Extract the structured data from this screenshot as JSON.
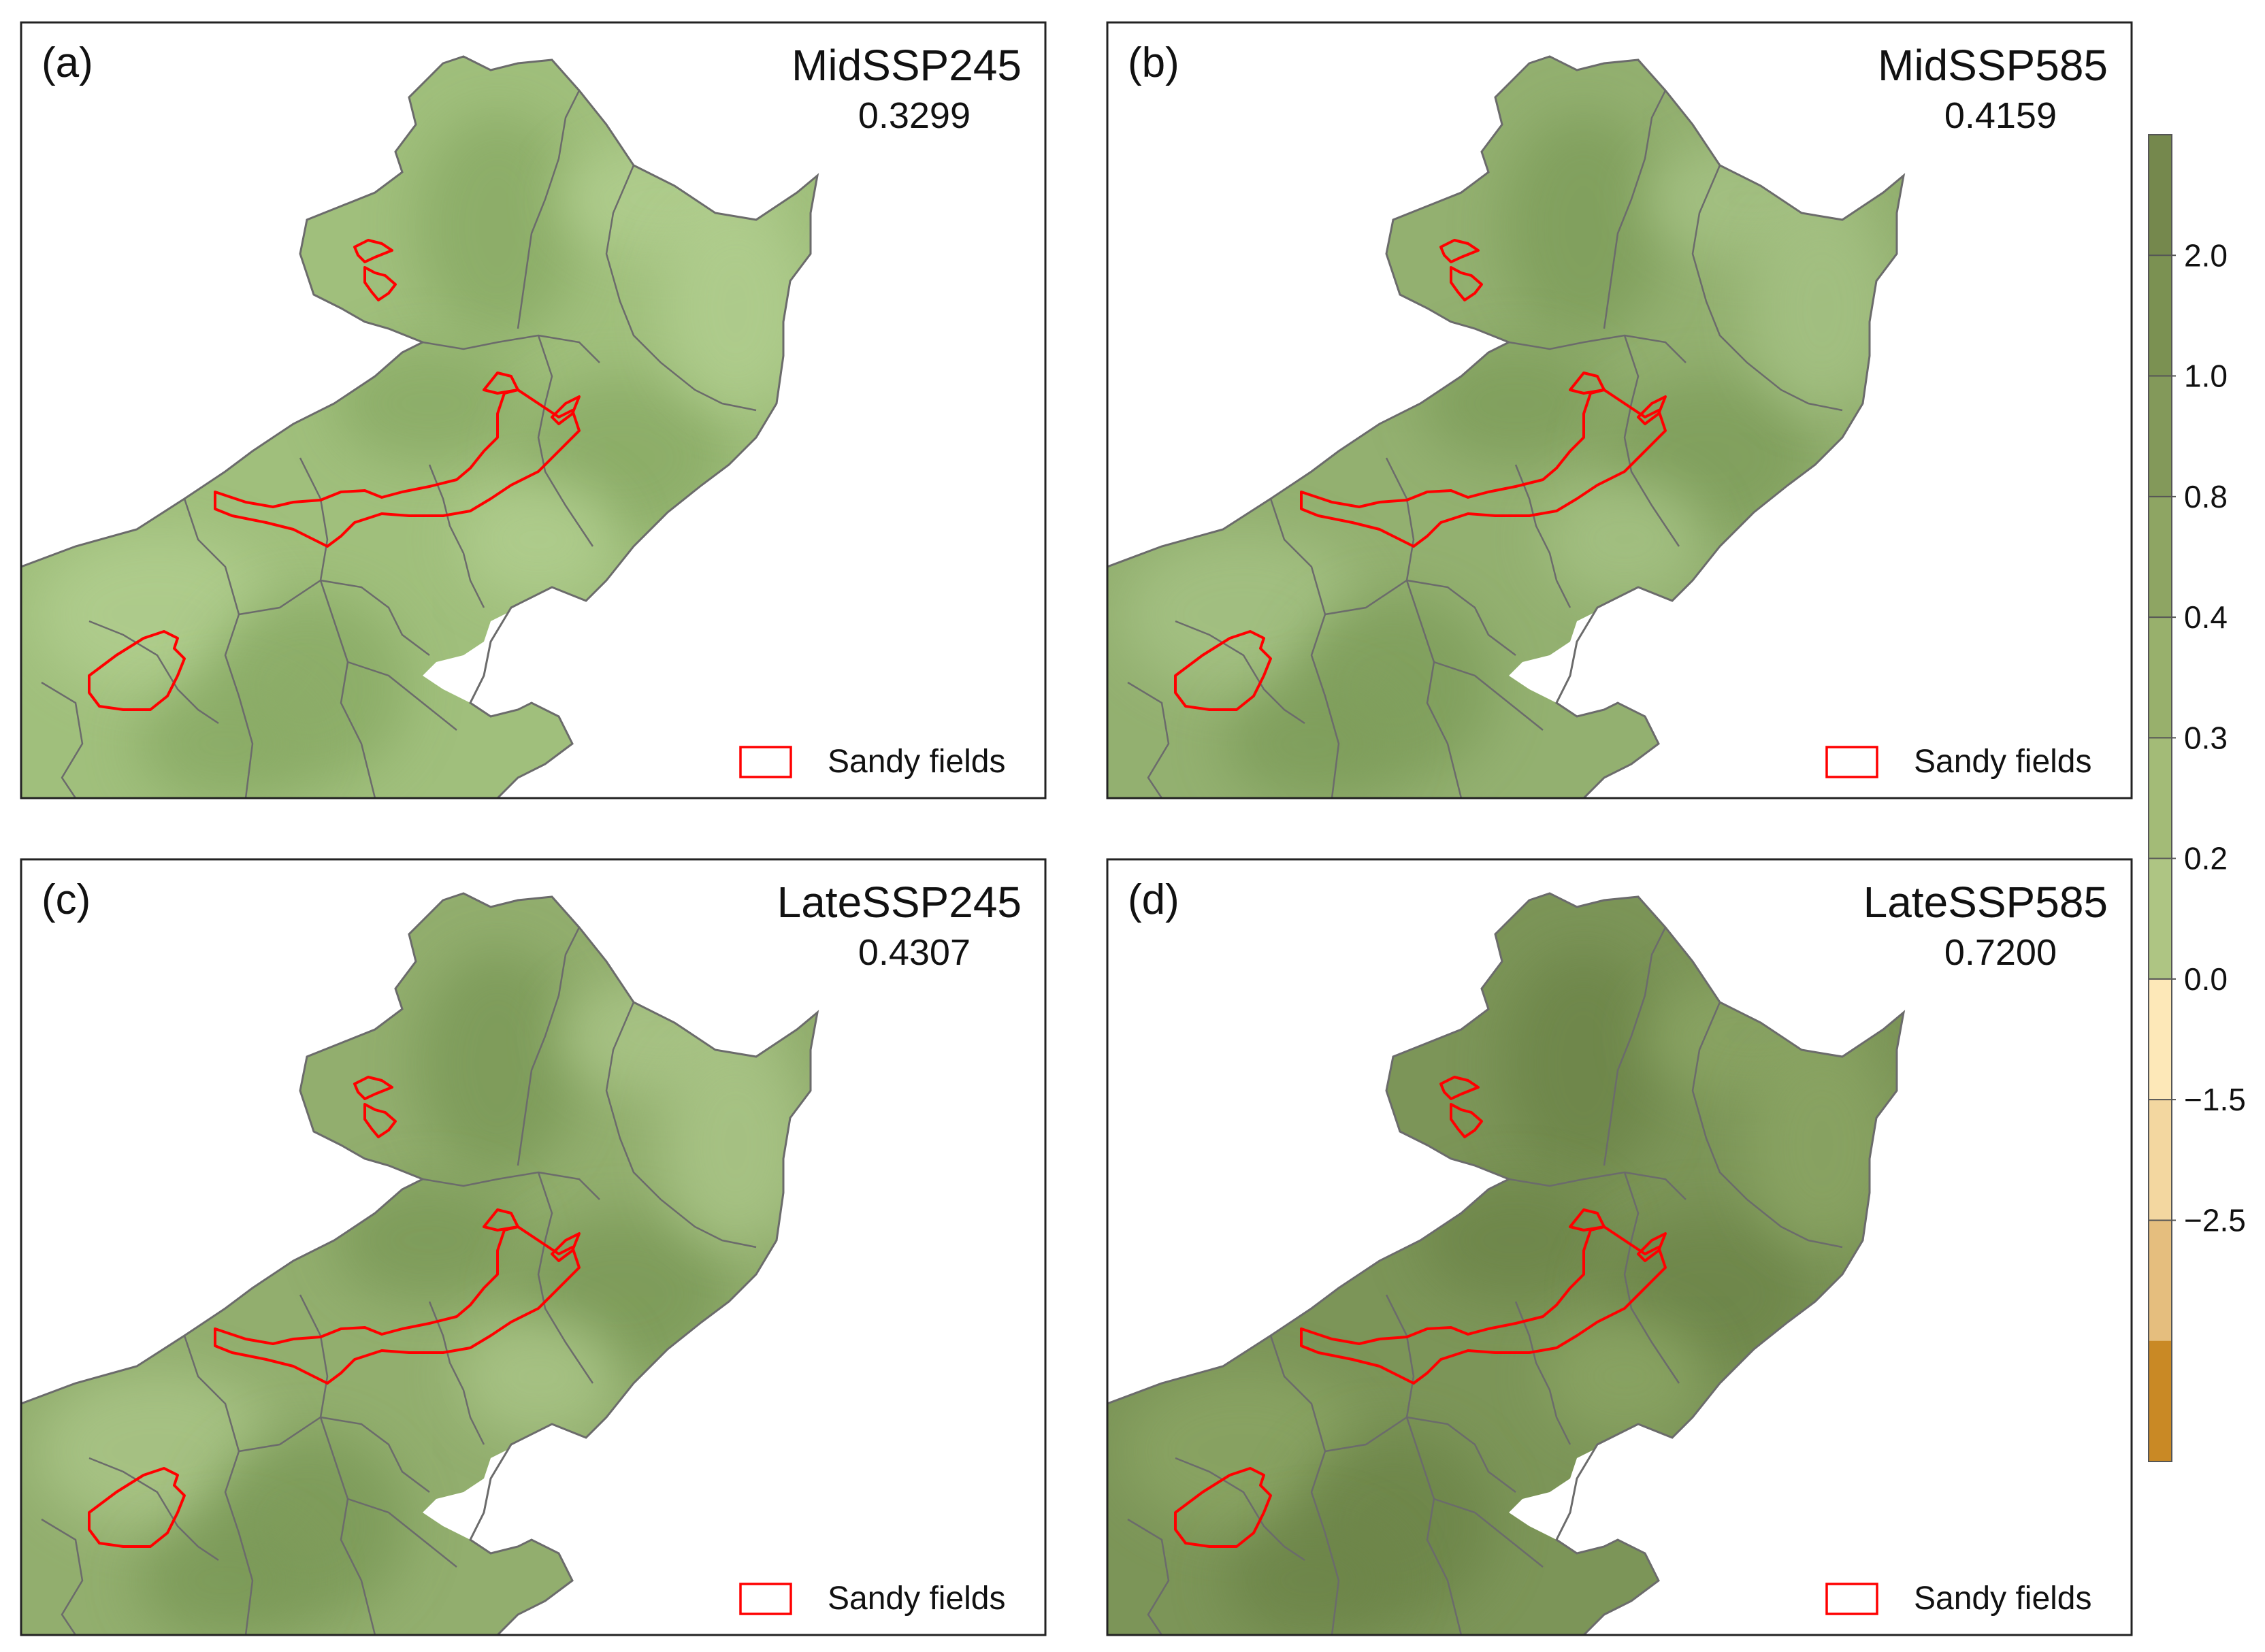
{
  "panels": [
    {
      "letter": "(a)",
      "scenario": "MidSSP245",
      "value": "0.3299",
      "legend_label": "Sandy fields",
      "fill_color": "#a0bf7c",
      "dark_color": "#8aab66",
      "light_color": "#b0cd8e"
    },
    {
      "letter": "(b)",
      "scenario": "MidSSP585",
      "value": "0.4159",
      "legend_label": "Sandy fields",
      "fill_color": "#93b070",
      "dark_color": "#7f9e5c",
      "light_color": "#a4c183"
    },
    {
      "letter": "(c)",
      "scenario": "LateSSP245",
      "value": "0.4307",
      "legend_label": "Sandy fields",
      "fill_color": "#92ae6e",
      "dark_color": "#7c9a58",
      "light_color": "#a9c486"
    },
    {
      "letter": "(d)",
      "scenario": "LateSSP585",
      "value": "0.7200",
      "legend_label": "Sandy fields",
      "fill_color": "#7c9558",
      "dark_color": "#6d8549",
      "light_color": "#8aa464"
    }
  ],
  "colorbar": {
    "ticks": [
      "2.0",
      "1.0",
      "0.8",
      "0.4",
      "0.3",
      "0.2",
      "0.0",
      "−1.5",
      "−2.5"
    ],
    "colors": [
      "#75884d",
      "#7b9152",
      "#83995a",
      "#8ea563",
      "#98b06c",
      "#a3bb77",
      "#aec583",
      "#fde8b8",
      "#f3d7a0",
      "#e5be7e",
      "#c98925"
    ]
  },
  "colors": {
    "sandy_outline": "#ff0000",
    "border": "#6b6b6b",
    "frame": "#222222"
  }
}
